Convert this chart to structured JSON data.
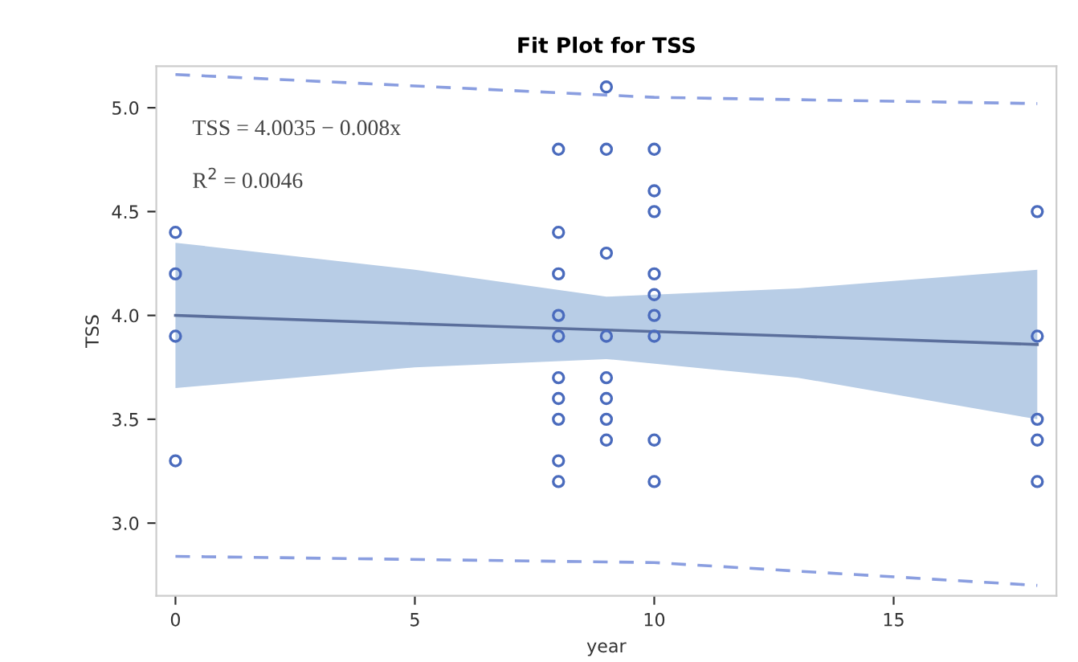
{
  "chart_data": {
    "type": "scatter",
    "title": "Fit Plot for TSS",
    "xlabel": "year",
    "ylabel": "TSS",
    "xlim": [
      -0.4,
      18.4
    ],
    "ylim": [
      2.65,
      5.2
    ],
    "xticks": [
      0,
      5,
      10,
      15
    ],
    "yticks": [
      {
        "value": 3.0,
        "label": "3.0"
      },
      {
        "value": 3.5,
        "label": "3.5"
      },
      {
        "value": 4.0,
        "label": "4.0"
      },
      {
        "value": 4.5,
        "label": "4.5"
      },
      {
        "value": 5.0,
        "label": "5.0"
      }
    ],
    "grid": false,
    "legend": false,
    "annotations": [
      "TSS = 4.0035 − 0.008x",
      "R$^{2}$ = 0.0046"
    ],
    "series": [
      {
        "type": "line",
        "marker": "none",
        "color": "#5b6f9c",
        "line_style": "solid",
        "x": [
          0,
          5,
          9,
          13,
          18
        ],
        "values": [
          4.0,
          3.96,
          3.93,
          3.9,
          3.86
        ],
        "lower": [
          3.65,
          3.75,
          3.79,
          3.7,
          3.5
        ],
        "upper": [
          4.35,
          4.22,
          4.09,
          4.13,
          4.22
        ]
      },
      {
        "type": "line",
        "marker": "none",
        "color": "#8a9ee0",
        "line_style": "dashed",
        "x": [
          0,
          10,
          18
        ],
        "values": [
          5.16,
          5.05,
          5.02
        ]
      },
      {
        "type": "line",
        "marker": "none",
        "color": "#8a9ee0",
        "line_style": "dashed",
        "x": [
          0,
          10,
          18
        ],
        "values": [
          2.84,
          2.81,
          2.7
        ]
      },
      {
        "color": "#4a6bbd",
        "marker": "circle",
        "x": [
          0,
          0,
          0,
          0,
          8,
          8,
          8,
          8,
          8,
          8,
          8,
          8,
          8,
          8,
          9,
          9,
          9,
          9,
          9,
          9,
          9,
          9,
          10,
          10,
          10,
          10,
          10,
          10,
          10,
          10,
          10,
          18,
          18,
          18,
          18,
          18
        ],
        "values": [
          4.4,
          4.2,
          3.9,
          3.3,
          4.8,
          4.4,
          4.2,
          4.0,
          3.9,
          3.7,
          3.6,
          3.5,
          3.3,
          3.2,
          5.1,
          4.8,
          4.3,
          3.9,
          3.7,
          3.6,
          3.5,
          3.4,
          4.8,
          4.6,
          4.5,
          4.2,
          4.1,
          4.0,
          3.9,
          3.4,
          3.2,
          4.5,
          3.9,
          3.5,
          3.4,
          3.2
        ]
      }
    ]
  }
}
